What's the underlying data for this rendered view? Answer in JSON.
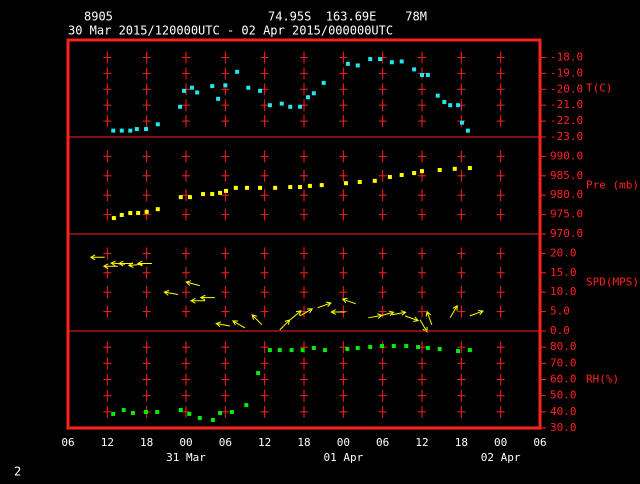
{
  "header": {
    "station": "8905",
    "location": "74.95S  163.69E    78M",
    "period": "30 Mar 2015/120000UTC - 02 Apr 2015/000000UTC"
  },
  "footer": "2",
  "chart_data": [
    {
      "type": "scatter",
      "label": "T(C)",
      "color": "#22e6f0",
      "xlim": [
        0,
        72
      ],
      "x": [
        6.9,
        8.2,
        9.5,
        10.5,
        11.9,
        13.7,
        17.1,
        17.7,
        18.9,
        19.7,
        22,
        22.9,
        24,
        25.8,
        27.5,
        29.3,
        30.8,
        32.6,
        33.9,
        35.4,
        36.6,
        37.5,
        39,
        42.7,
        44.2,
        46.1,
        47.6,
        49.4,
        50.9,
        52.8,
        54,
        54.9,
        56.4,
        57.4,
        58.3,
        59.5,
        60.1,
        61
      ],
      "values": [
        -22.6,
        -22.6,
        -22.6,
        -22.5,
        -22.5,
        -22.2,
        -21.1,
        -20.1,
        -19.9,
        -20.2,
        -19.8,
        -20.6,
        -19.75,
        -18.9,
        -19.9,
        -20.1,
        -21,
        -20.9,
        -21.1,
        -21.1,
        -20.5,
        -20.25,
        -19.6,
        -18.4,
        -18.5,
        -18.1,
        -18.1,
        -18.3,
        -18.25,
        -18.75,
        -19.1,
        -19.1,
        -20.4,
        -20.8,
        -21,
        -21,
        -22.1,
        -22.6
      ],
      "ylim": [
        -23,
        -16.9
      ],
      "yticks": [
        {
          "value": -18,
          "label": "-18.0"
        },
        {
          "value": -19,
          "label": "-19.0"
        },
        {
          "value": -20,
          "label": "-20.0"
        },
        {
          "value": -21,
          "label": "-21.0"
        },
        {
          "value": -22,
          "label": "-22.0"
        },
        {
          "value": -23,
          "label": "-23.0"
        }
      ]
    },
    {
      "type": "scatter",
      "label": "Pre (mb)",
      "color": "#ffff00",
      "xlim": [
        0,
        72
      ],
      "x": [
        7,
        8.2,
        9.5,
        10.7,
        12,
        13.7,
        17.2,
        18.6,
        20.6,
        22,
        23.2,
        24.1,
        25.6,
        27.3,
        29.3,
        31.6,
        33.9,
        35.4,
        36.9,
        38.7,
        42.4,
        44.5,
        46.8,
        49.1,
        50.9,
        52.8,
        54,
        56.7,
        59,
        61.3
      ],
      "values": [
        974.1,
        974.9,
        975.4,
        975.4,
        975.7,
        976.4,
        979.5,
        979.5,
        980.3,
        980.3,
        980.6,
        981.1,
        981.9,
        981.9,
        981.9,
        981.9,
        982.1,
        982.1,
        982.4,
        982.6,
        983.1,
        983.4,
        983.7,
        984.7,
        985.2,
        985.7,
        986.2,
        986.5,
        986.8,
        987
      ],
      "ylim": [
        970,
        995
      ],
      "yticks": [
        {
          "value": 990,
          "label": "990.0"
        },
        {
          "value": 985,
          "label": "985.0"
        },
        {
          "value": 980,
          "label": "980.0"
        },
        {
          "value": 975,
          "label": "975.0"
        },
        {
          "value": 970,
          "label": "970.0"
        }
      ]
    },
    {
      "type": "wind",
      "label": "SPD(MPS)",
      "color": "#ffff00",
      "xlim": [
        0,
        72
      ],
      "x": [
        5.6,
        7.6,
        8.7,
        9.9,
        11.4,
        12.8,
        16.8,
        20.1,
        20.9,
        22.4,
        24.7,
        27,
        29.6,
        32.3,
        33.9,
        35.4,
        38.1,
        42.3,
        43.9,
        45.8,
        47.6,
        49.4,
        51.4,
        53.7,
        55.5,
        58.3,
        61.3
      ],
      "values": [
        19,
        16.7,
        17.2,
        17.4,
        17.2,
        17.4,
        9.4,
        11.7,
        7.8,
        8.6,
        1.3,
        0.8,
        1.6,
        0.3,
        2.9,
        3.9,
        6,
        4.9,
        7,
        3.4,
        3.9,
        4.2,
        3.9,
        2.9,
        1.6,
        3.4,
        3.9
      ],
      "directions": [
        180,
        180,
        175,
        180,
        185,
        180,
        170,
        165,
        180,
        180,
        170,
        150,
        135,
        45,
        40,
        30,
        20,
        180,
        160,
        10,
        15,
        10,
        -20,
        -60,
        110,
        60,
        20
      ],
      "ylim": [
        0,
        25
      ],
      "yticks": [
        {
          "value": 20,
          "label": "20.0"
        },
        {
          "value": 15,
          "label": "15.0"
        },
        {
          "value": 10,
          "label": "10.0"
        },
        {
          "value": 5,
          "label": "5.0"
        },
        {
          "value": 0,
          "label": "0.0"
        }
      ]
    },
    {
      "type": "scatter",
      "label": "RH(%)",
      "color": "#00ee00",
      "xlim": [
        0,
        72
      ],
      "x": [
        6.9,
        8.5,
        9.9,
        11.9,
        13.6,
        17.2,
        18.5,
        20.1,
        22.1,
        23.2,
        25,
        27.2,
        29,
        30.8,
        32.3,
        34.1,
        35.8,
        37.5,
        39.2,
        42.6,
        44.2,
        46.1,
        47.9,
        49.7,
        51.6,
        53.4,
        54.9,
        56.7,
        59.5,
        61.3
      ],
      "values": [
        38.7,
        41.1,
        39.3,
        39.9,
        39.9,
        41.1,
        38.7,
        36.2,
        35,
        39.3,
        39.9,
        44.2,
        64,
        78.2,
        78.2,
        78.2,
        78.2,
        79.5,
        78.2,
        78.9,
        79.5,
        80.1,
        80.7,
        80.7,
        80.7,
        80.1,
        79.5,
        78.9,
        77.6,
        78.2
      ],
      "ylim": [
        30,
        90
      ],
      "yticks": [
        {
          "value": 80,
          "label": "80.0"
        },
        {
          "value": 70,
          "label": "70.0"
        },
        {
          "value": 60,
          "label": "60.0"
        },
        {
          "value": 50,
          "label": "50.0"
        },
        {
          "value": 40,
          "label": "40.0"
        },
        {
          "value": 30,
          "label": "30.0"
        }
      ],
      "xticks": [
        {
          "value": 0,
          "label": "06"
        },
        {
          "value": 6,
          "label": "12"
        },
        {
          "value": 12,
          "label": "18"
        },
        {
          "value": 18,
          "label": "00"
        },
        {
          "value": 24,
          "label": "06"
        },
        {
          "value": 30,
          "label": "12"
        },
        {
          "value": 36,
          "label": "18"
        },
        {
          "value": 42,
          "label": "00"
        },
        {
          "value": 48,
          "label": "06"
        },
        {
          "value": 54,
          "label": "12"
        },
        {
          "value": 60,
          "label": "18"
        },
        {
          "value": 66,
          "label": "00"
        },
        {
          "value": 72,
          "label": "06"
        }
      ],
      "date_labels": [
        {
          "value": 18,
          "label": "31 Mar"
        },
        {
          "value": 42,
          "label": "01 Apr"
        },
        {
          "value": 66,
          "label": "02 Apr"
        }
      ]
    }
  ]
}
